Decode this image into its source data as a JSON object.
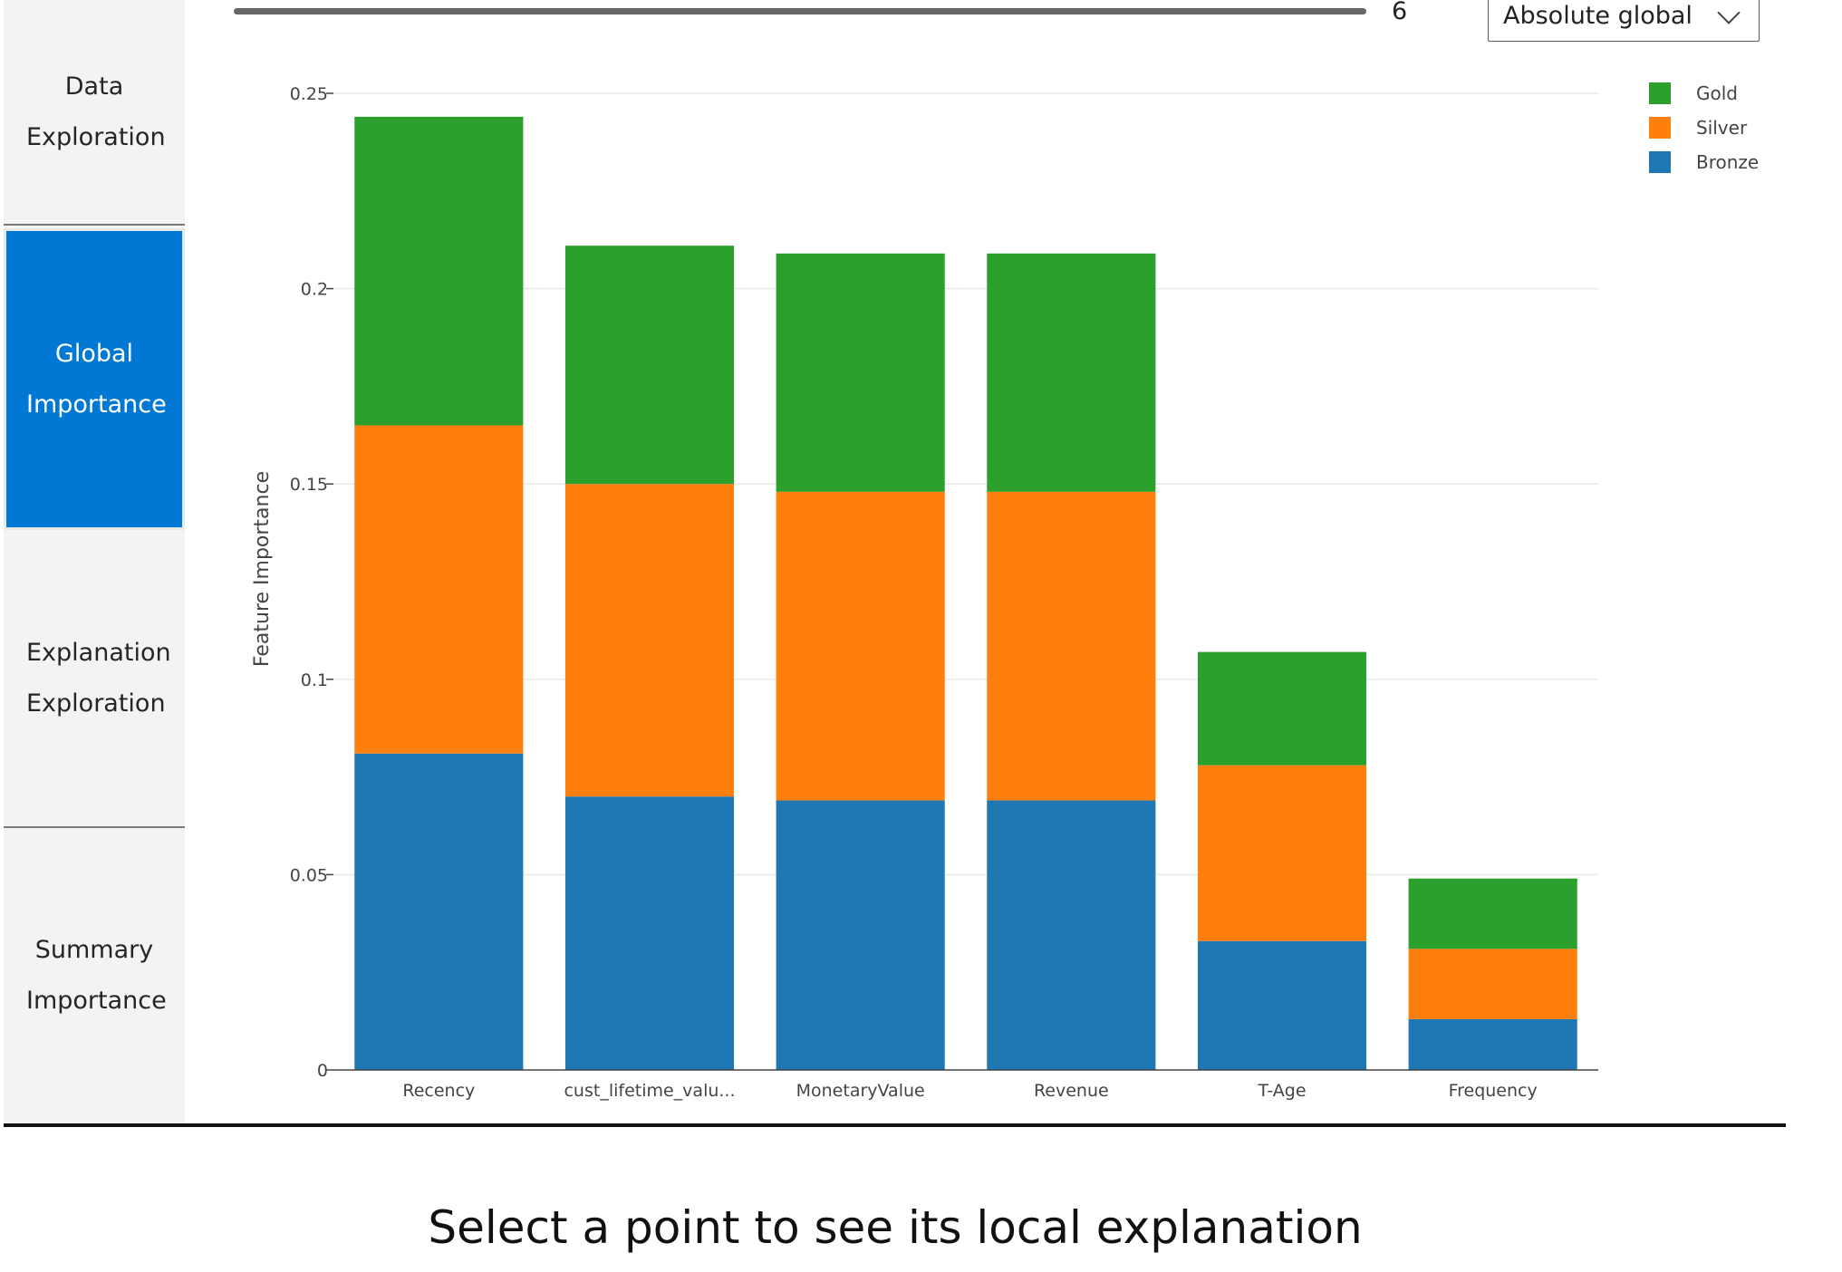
{
  "sidebar": {
    "items": [
      {
        "label": "Data Exploration",
        "active": false
      },
      {
        "label": "Global Importance",
        "active": true
      },
      {
        "label": "Explanation Exploration",
        "active": false
      },
      {
        "label": "Summary Importance",
        "active": false
      }
    ]
  },
  "controls": {
    "top_k_value": "6",
    "importance_mode": "Absolute global"
  },
  "colors": {
    "accent": "#0078d4",
    "gold": "#2ca02c",
    "silver": "#ff7f0e",
    "bronze": "#1f77b4"
  },
  "icons": {
    "dropdown": "chevron-down-icon"
  },
  "chart_data": {
    "type": "bar",
    "stacked": true,
    "categories": [
      "Recency",
      "cust_lifetime_valu...",
      "MonetaryValue",
      "Revenue",
      "T-Age",
      "Frequency"
    ],
    "series": [
      {
        "name": "Bronze",
        "color": "#1f77b4",
        "values": [
          0.081,
          0.07,
          0.069,
          0.069,
          0.033,
          0.013
        ]
      },
      {
        "name": "Silver",
        "color": "#ff7f0e",
        "values": [
          0.084,
          0.08,
          0.079,
          0.079,
          0.045,
          0.018
        ]
      },
      {
        "name": "Gold",
        "color": "#2ca02c",
        "values": [
          0.079,
          0.061,
          0.061,
          0.061,
          0.029,
          0.018
        ]
      }
    ],
    "legend": [
      "Gold",
      "Silver",
      "Bronze"
    ],
    "legend_position": "top-right",
    "ylabel": "Feature Importance",
    "xlabel": "",
    "ylim": [
      0,
      0.25
    ],
    "yticks": [
      0,
      0.05,
      0.1,
      0.15,
      0.2,
      0.25
    ],
    "ytick_labels": [
      "0",
      "0.05",
      "0.1",
      "0.15",
      "0.2",
      "0.25"
    ],
    "grid": true
  },
  "footer": {
    "message": "Select a point to see its local explanation"
  }
}
